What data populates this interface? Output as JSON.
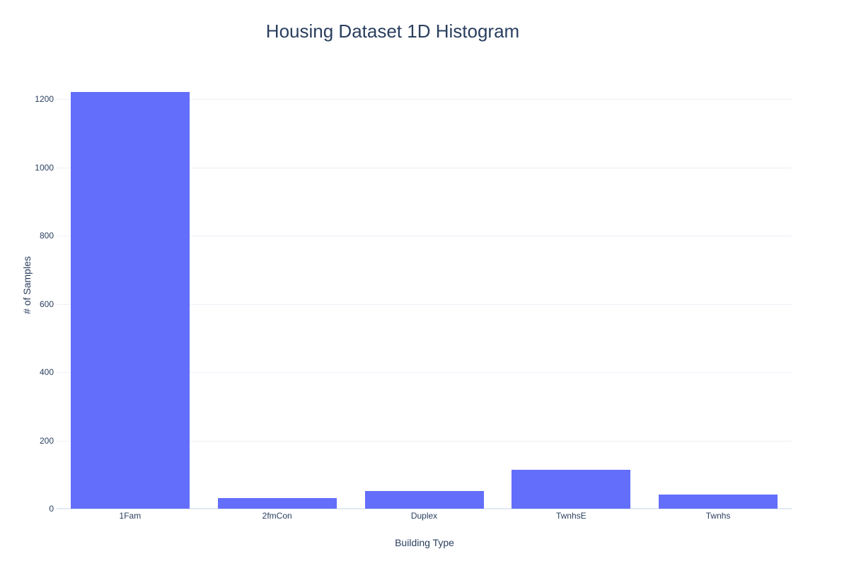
{
  "chart_data": {
    "type": "bar",
    "title": "Housing Dataset 1D Histogram",
    "xlabel": "Building Type",
    "ylabel": "# of Samples",
    "categories": [
      "1Fam",
      "2fmCon",
      "Duplex",
      "TwnhsE",
      "Twnhs"
    ],
    "values": [
      1220,
      31,
      52,
      114,
      43
    ],
    "yticks": [
      0,
      200,
      400,
      600,
      800,
      1000,
      1200
    ],
    "ylim": [
      0,
      1310
    ],
    "grid": true,
    "legend": false,
    "colors": {
      "bar": "#636efa",
      "grid": "#ebf0f8",
      "zero_line": "#e3e9f2",
      "text": "#2a3f5f",
      "background": "#ffffff"
    }
  }
}
